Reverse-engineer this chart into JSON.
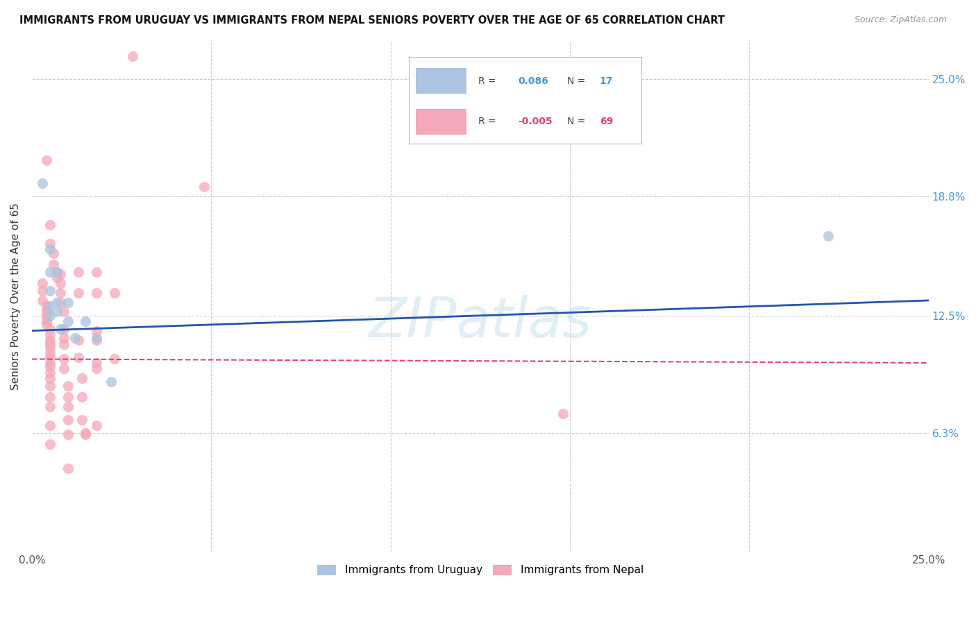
{
  "title": "IMMIGRANTS FROM URUGUAY VS IMMIGRANTS FROM NEPAL SENIORS POVERTY OVER THE AGE OF 65 CORRELATION CHART",
  "source": "Source: ZipAtlas.com",
  "ylabel": "Seniors Poverty Over the Age of 65",
  "ytick_values": [
    0.063,
    0.125,
    0.188,
    0.25
  ],
  "ytick_labels": [
    "6.3%",
    "12.5%",
    "18.8%",
    "25.0%"
  ],
  "xlim": [
    0.0,
    0.25
  ],
  "ylim": [
    0.0,
    0.27
  ],
  "watermark": "ZIPatlas",
  "legend_r_uruguay": "0.086",
  "legend_n_uruguay": "17",
  "legend_r_nepal": "-0.005",
  "legend_n_nepal": "69",
  "color_uruguay": "#aac4e2",
  "color_nepal": "#f5a8b8",
  "line_color_uruguay": "#2255aa",
  "line_color_nepal": "#dd4477",
  "uru_line_start": 0.117,
  "uru_line_end": 0.133,
  "nep_line_start": 0.102,
  "nep_line_end": 0.1,
  "uruguay_points": [
    [
      0.003,
      0.195
    ],
    [
      0.005,
      0.16
    ],
    [
      0.005,
      0.148
    ],
    [
      0.005,
      0.138
    ],
    [
      0.005,
      0.13
    ],
    [
      0.005,
      0.125
    ],
    [
      0.007,
      0.148
    ],
    [
      0.007,
      0.132
    ],
    [
      0.007,
      0.127
    ],
    [
      0.008,
      0.118
    ],
    [
      0.01,
      0.132
    ],
    [
      0.01,
      0.122
    ],
    [
      0.012,
      0.113
    ],
    [
      0.015,
      0.122
    ],
    [
      0.018,
      0.113
    ],
    [
      0.022,
      0.09
    ],
    [
      0.222,
      0.167
    ]
  ],
  "nepal_points": [
    [
      0.028,
      0.262
    ],
    [
      0.004,
      0.207
    ],
    [
      0.048,
      0.193
    ],
    [
      0.005,
      0.173
    ],
    [
      0.005,
      0.163
    ],
    [
      0.006,
      0.158
    ],
    [
      0.006,
      0.152
    ],
    [
      0.007,
      0.148
    ],
    [
      0.007,
      0.145
    ],
    [
      0.003,
      0.142
    ],
    [
      0.003,
      0.138
    ],
    [
      0.003,
      0.133
    ],
    [
      0.004,
      0.13
    ],
    [
      0.004,
      0.128
    ],
    [
      0.004,
      0.126
    ],
    [
      0.004,
      0.124
    ],
    [
      0.004,
      0.122
    ],
    [
      0.004,
      0.12
    ],
    [
      0.005,
      0.118
    ],
    [
      0.005,
      0.115
    ],
    [
      0.005,
      0.112
    ],
    [
      0.005,
      0.11
    ],
    [
      0.005,
      0.108
    ],
    [
      0.005,
      0.105
    ],
    [
      0.005,
      0.103
    ],
    [
      0.005,
      0.1
    ],
    [
      0.005,
      0.098
    ],
    [
      0.005,
      0.095
    ],
    [
      0.005,
      0.092
    ],
    [
      0.005,
      0.088
    ],
    [
      0.005,
      0.082
    ],
    [
      0.005,
      0.077
    ],
    [
      0.005,
      0.067
    ],
    [
      0.005,
      0.057
    ],
    [
      0.008,
      0.147
    ],
    [
      0.008,
      0.142
    ],
    [
      0.008,
      0.137
    ],
    [
      0.008,
      0.132
    ],
    [
      0.009,
      0.127
    ],
    [
      0.009,
      0.118
    ],
    [
      0.009,
      0.113
    ],
    [
      0.009,
      0.11
    ],
    [
      0.009,
      0.102
    ],
    [
      0.009,
      0.097
    ],
    [
      0.01,
      0.088
    ],
    [
      0.01,
      0.082
    ],
    [
      0.01,
      0.077
    ],
    [
      0.01,
      0.07
    ],
    [
      0.01,
      0.062
    ],
    [
      0.01,
      0.044
    ],
    [
      0.013,
      0.148
    ],
    [
      0.013,
      0.137
    ],
    [
      0.013,
      0.112
    ],
    [
      0.013,
      0.103
    ],
    [
      0.014,
      0.092
    ],
    [
      0.014,
      0.082
    ],
    [
      0.014,
      0.07
    ],
    [
      0.015,
      0.063
    ],
    [
      0.015,
      0.062
    ],
    [
      0.018,
      0.148
    ],
    [
      0.018,
      0.137
    ],
    [
      0.018,
      0.117
    ],
    [
      0.018,
      0.112
    ],
    [
      0.018,
      0.1
    ],
    [
      0.018,
      0.097
    ],
    [
      0.018,
      0.067
    ],
    [
      0.023,
      0.137
    ],
    [
      0.023,
      0.102
    ],
    [
      0.148,
      0.073
    ]
  ]
}
